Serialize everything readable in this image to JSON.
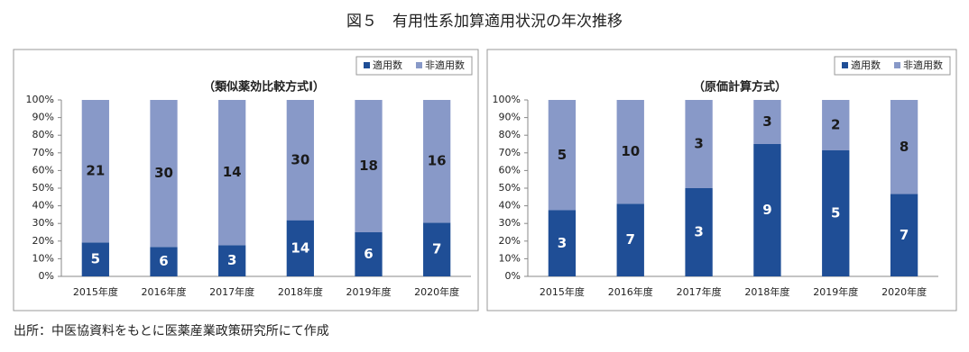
{
  "title": "図５　有用性系加算適用状況の年次推移",
  "source": "出所：中医協資料をもとに医薬産業政策研究所にて作成",
  "chart_data": [
    {
      "type": "bar",
      "stacked": true,
      "normalize": true,
      "title": "（類似薬効比較方式Ⅰ）",
      "categories": [
        "2015年度",
        "2016年度",
        "2017年度",
        "2018年度",
        "2019年度",
        "2020年度"
      ],
      "series": [
        {
          "name": "適用数",
          "color": "#1f4e96",
          "label_color": "#ffffff",
          "values": [
            5,
            6,
            3,
            14,
            6,
            7
          ]
        },
        {
          "name": "非適用数",
          "color": "#8899c8",
          "label_color": "#1a1a1a",
          "values": [
            21,
            30,
            14,
            30,
            18,
            16
          ]
        }
      ],
      "ylim": [
        0,
        100
      ],
      "yticks": [
        {
          "value": 0,
          "label": "0%"
        },
        {
          "value": 10,
          "label": "10%"
        },
        {
          "value": 20,
          "label": "20%"
        },
        {
          "value": 30,
          "label": "30%"
        },
        {
          "value": 40,
          "label": "40%"
        },
        {
          "value": 50,
          "label": "50%"
        },
        {
          "value": 60,
          "label": "60%"
        },
        {
          "value": 70,
          "label": "70%"
        },
        {
          "value": 80,
          "label": "80%"
        },
        {
          "value": 90,
          "label": "90%"
        },
        {
          "value": 100,
          "label": "100%"
        }
      ],
      "grid": false,
      "legend": "top-right"
    },
    {
      "type": "bar",
      "stacked": true,
      "normalize": true,
      "title": "（原価計算方式）",
      "categories": [
        "2015年度",
        "2016年度",
        "2017年度",
        "2018年度",
        "2019年度",
        "2020年度"
      ],
      "series": [
        {
          "name": "適用数",
          "color": "#1f4e96",
          "label_color": "#ffffff",
          "values": [
            3,
            7,
            3,
            9,
            5,
            7
          ]
        },
        {
          "name": "非適用数",
          "color": "#8899c8",
          "label_color": "#1a1a1a",
          "values": [
            5,
            10,
            3,
            3,
            2,
            8
          ]
        }
      ],
      "ylim": [
        0,
        100
      ],
      "yticks": [
        {
          "value": 0,
          "label": "0%"
        },
        {
          "value": 10,
          "label": "10%"
        },
        {
          "value": 20,
          "label": "20%"
        },
        {
          "value": 30,
          "label": "30%"
        },
        {
          "value": 40,
          "label": "40%"
        },
        {
          "value": 50,
          "label": "50%"
        },
        {
          "value": 60,
          "label": "60%"
        },
        {
          "value": 70,
          "label": "70%"
        },
        {
          "value": 80,
          "label": "80%"
        },
        {
          "value": 90,
          "label": "90%"
        },
        {
          "value": 100,
          "label": "100%"
        }
      ],
      "grid": false,
      "legend": "top-right"
    }
  ]
}
